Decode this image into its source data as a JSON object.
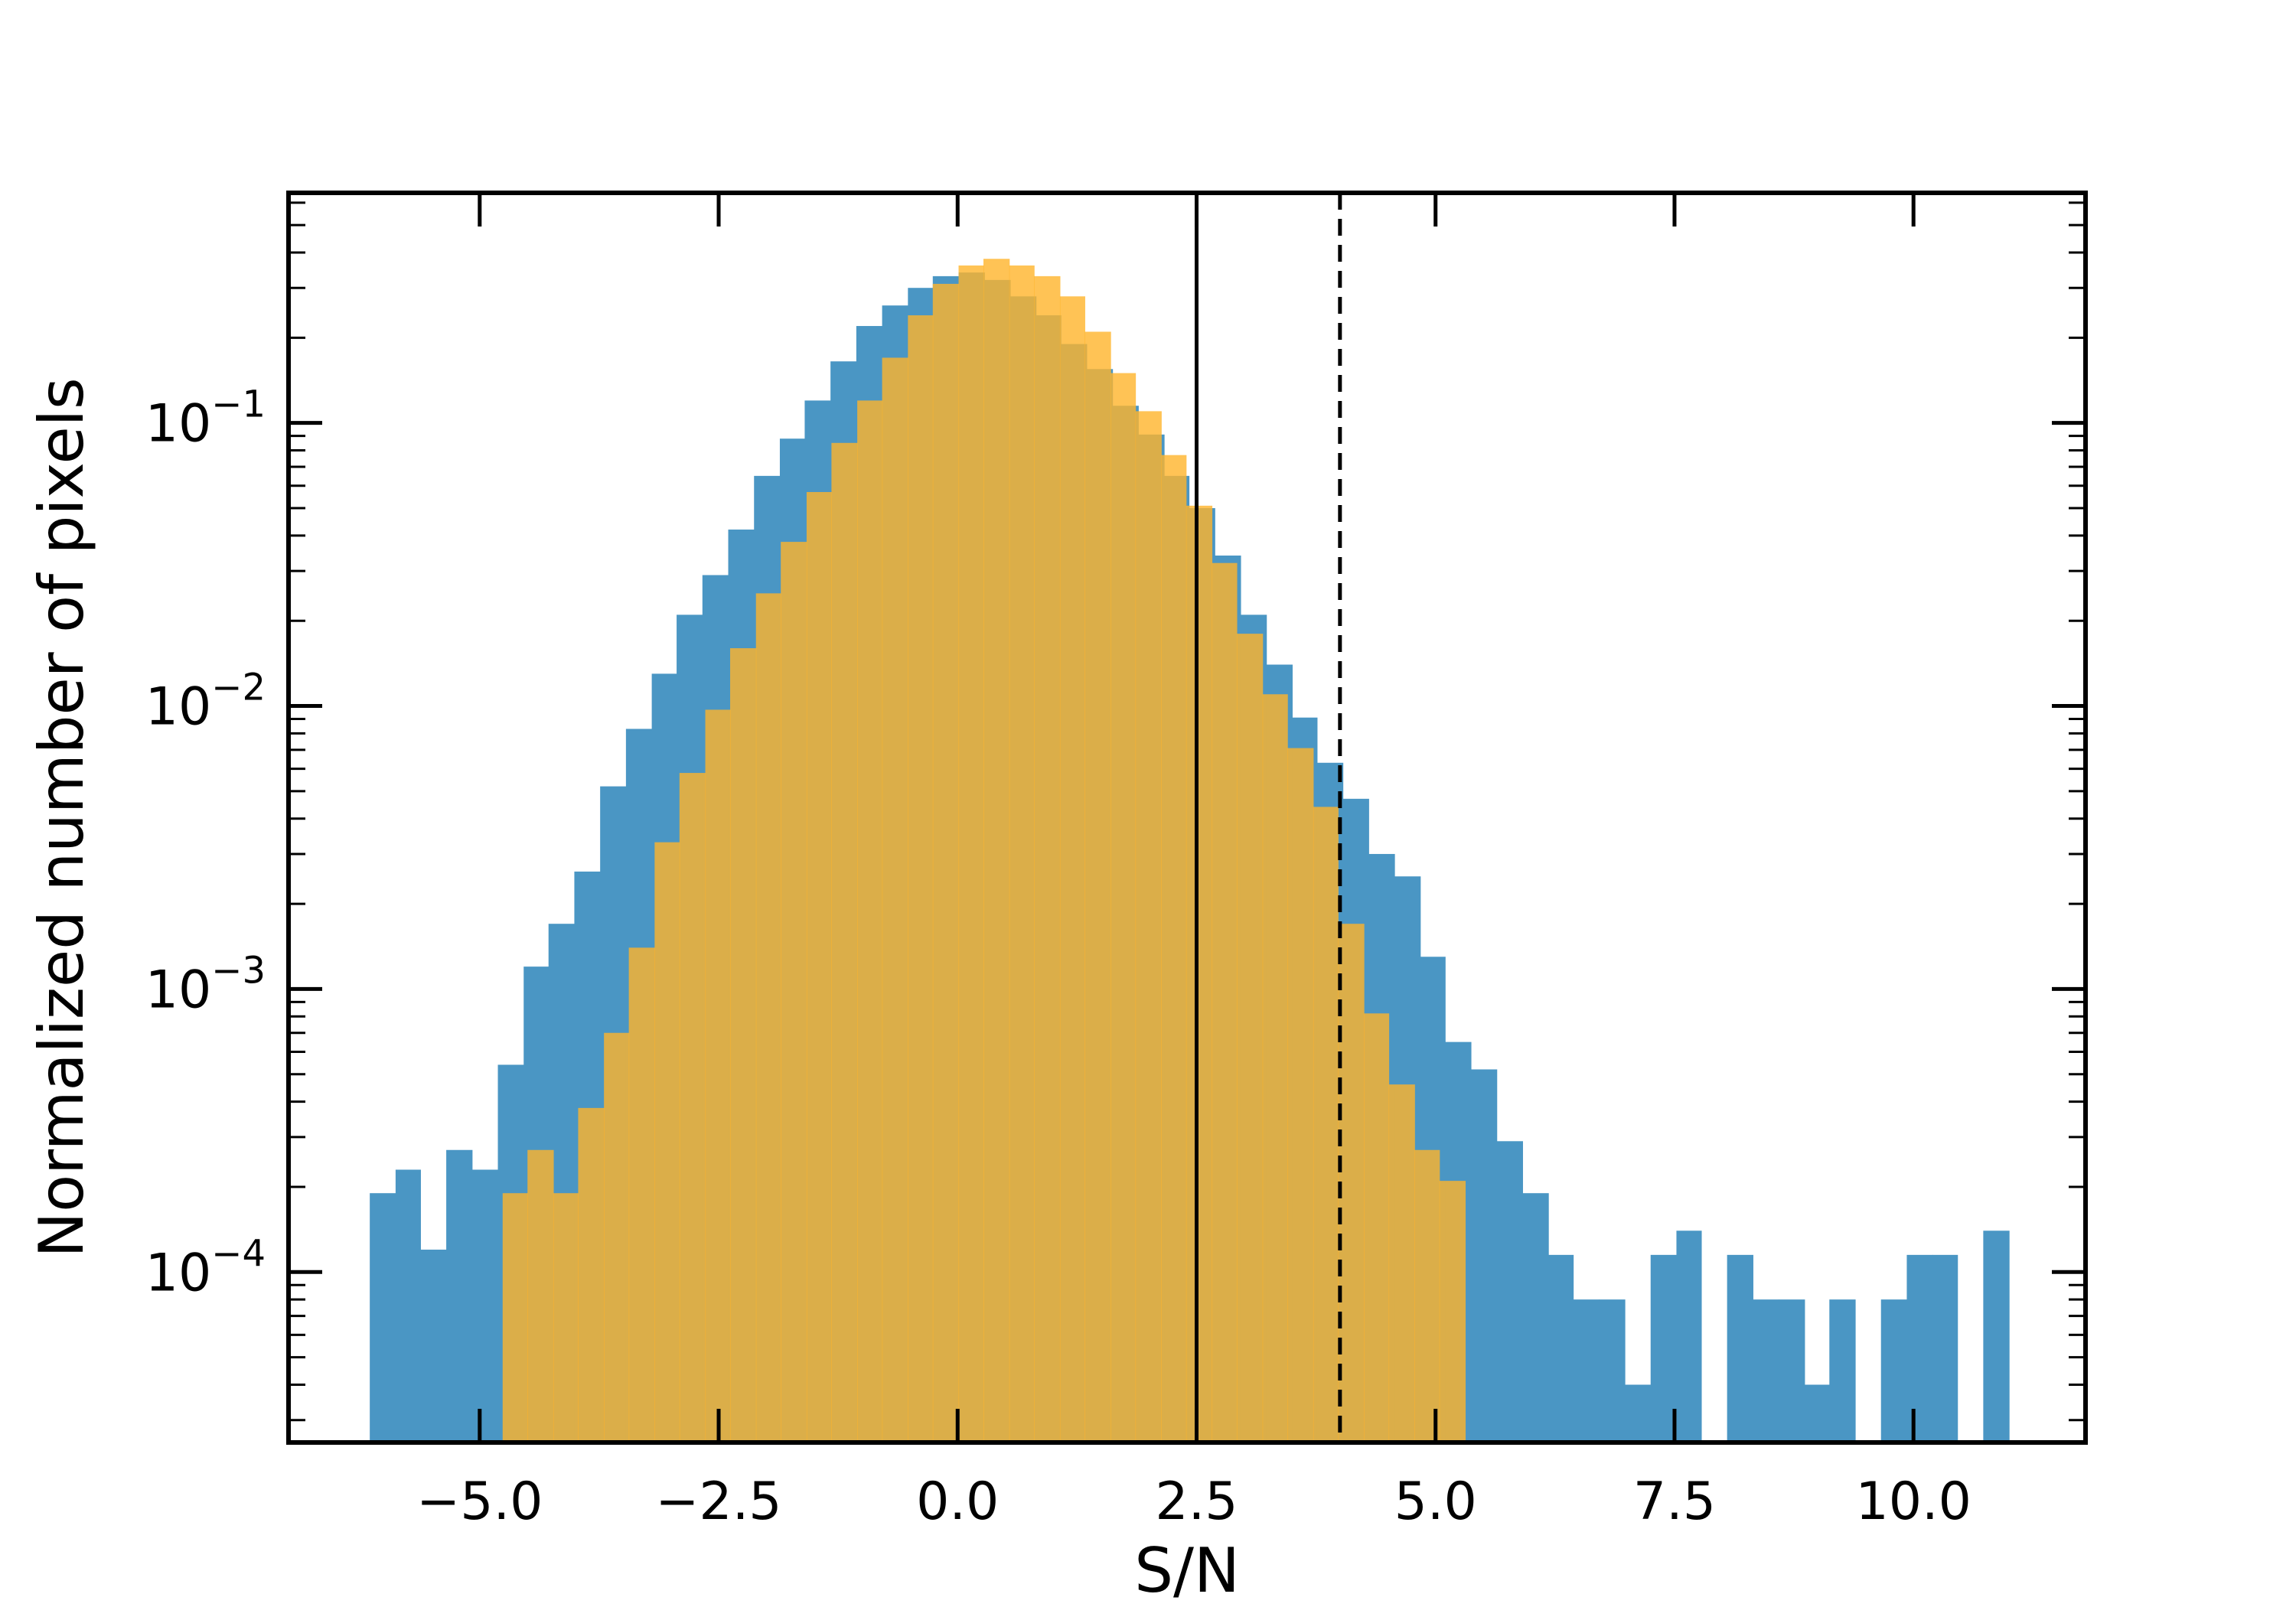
{
  "chart_data": {
    "type": "histogram",
    "xlabel": "S/N",
    "ylabel": "Normalized number of pixels",
    "xlim": [
      -7.0,
      11.8
    ],
    "ylim": [
      2.5e-05,
      0.65
    ],
    "yscale": "log",
    "xticks": [
      -5.0,
      -2.5,
      0.0,
      2.5,
      5.0,
      7.5,
      10.0
    ],
    "xtick_labels": [
      "−5.0",
      "−2.5",
      "0.0",
      "2.5",
      "5.0",
      "7.5",
      "10.0"
    ],
    "yticks": [
      0.0001,
      0.001,
      0.01,
      0.1
    ],
    "ytick_labels": [
      {
        "base": "10",
        "exp": "−4"
      },
      {
        "base": "10",
        "exp": "−3"
      },
      {
        "base": "10",
        "exp": "−2"
      },
      {
        "base": "10",
        "exp": "−1"
      }
    ],
    "vlines": [
      {
        "x": 2.5,
        "style": "solid",
        "color": "#000000"
      },
      {
        "x": 4.0,
        "style": "dashed",
        "color": "#000000"
      }
    ],
    "series": [
      {
        "color": "#4a96c4",
        "opacity": 1.0,
        "bins": [
          [
            -6.15,
            -5.88,
            0.00019
          ],
          [
            -5.88,
            -5.62,
            0.00023
          ],
          [
            -5.62,
            -5.35,
            0.00012
          ],
          [
            -5.35,
            -5.08,
            0.00027
          ],
          [
            -5.08,
            -4.81,
            0.00023
          ],
          [
            -4.81,
            -4.54,
            0.00054
          ],
          [
            -4.54,
            -4.28,
            0.0012
          ],
          [
            -4.28,
            -4.01,
            0.0017
          ],
          [
            -4.01,
            -3.74,
            0.0026
          ],
          [
            -3.74,
            -3.47,
            0.0052
          ],
          [
            -3.47,
            -3.2,
            0.0083
          ],
          [
            -3.2,
            -2.94,
            0.013
          ],
          [
            -2.94,
            -2.67,
            0.021
          ],
          [
            -2.67,
            -2.4,
            0.029
          ],
          [
            -2.4,
            -2.13,
            0.042
          ],
          [
            -2.13,
            -1.86,
            0.065
          ],
          [
            -1.86,
            -1.6,
            0.088
          ],
          [
            -1.6,
            -1.33,
            0.12
          ],
          [
            -1.33,
            -1.06,
            0.165
          ],
          [
            -1.06,
            -0.79,
            0.22
          ],
          [
            -0.79,
            -0.52,
            0.26
          ],
          [
            -0.52,
            -0.26,
            0.3
          ],
          [
            -0.26,
            0.01,
            0.33
          ],
          [
            0.01,
            0.28,
            0.34
          ],
          [
            0.28,
            0.55,
            0.32
          ],
          [
            0.55,
            0.82,
            0.28
          ],
          [
            0.82,
            1.08,
            0.24
          ],
          [
            1.08,
            1.35,
            0.19
          ],
          [
            1.35,
            1.62,
            0.155
          ],
          [
            1.62,
            1.89,
            0.115
          ],
          [
            1.89,
            2.16,
            0.091
          ],
          [
            2.16,
            2.42,
            0.065
          ],
          [
            2.42,
            2.69,
            0.05
          ],
          [
            2.69,
            2.96,
            0.034
          ],
          [
            2.96,
            3.23,
            0.021
          ],
          [
            3.23,
            3.5,
            0.014
          ],
          [
            3.5,
            3.76,
            0.0091
          ],
          [
            3.76,
            4.03,
            0.0063
          ],
          [
            4.03,
            4.3,
            0.0047
          ],
          [
            4.3,
            4.57,
            0.003
          ],
          [
            4.57,
            4.84,
            0.0025
          ],
          [
            4.84,
            5.1,
            0.0013
          ],
          [
            5.1,
            5.37,
            0.00065
          ],
          [
            5.37,
            5.64,
            0.00052
          ],
          [
            5.64,
            5.91,
            0.00029
          ],
          [
            5.91,
            6.18,
            0.00019
          ],
          [
            6.18,
            6.44,
            0.000115
          ],
          [
            6.44,
            6.71,
            8e-05
          ],
          [
            6.71,
            6.98,
            8e-05
          ],
          [
            6.98,
            7.25,
            4e-05
          ],
          [
            7.25,
            7.52,
            0.000115
          ],
          [
            7.52,
            7.78,
            0.00014
          ],
          [
            7.78,
            8.05,
            0.0
          ],
          [
            8.05,
            8.32,
            0.000115
          ],
          [
            8.32,
            8.59,
            8e-05
          ],
          [
            8.59,
            8.86,
            8e-05
          ],
          [
            8.86,
            9.12,
            4e-05
          ],
          [
            9.12,
            9.39,
            8e-05
          ],
          [
            9.39,
            9.66,
            0.0
          ],
          [
            9.66,
            9.93,
            8e-05
          ],
          [
            9.93,
            10.2,
            0.000115
          ],
          [
            10.2,
            10.46,
            0.000115
          ],
          [
            10.46,
            10.73,
            0.0
          ],
          [
            10.73,
            11.0,
            0.00014
          ]
        ]
      },
      {
        "color": "#ffb42a",
        "opacity": 0.8,
        "bins": [
          [
            -4.76,
            -4.5,
            0.00019
          ],
          [
            -4.5,
            -4.23,
            0.00027
          ],
          [
            -4.23,
            -3.97,
            0.00019
          ],
          [
            -3.97,
            -3.7,
            0.00038
          ],
          [
            -3.7,
            -3.44,
            0.0007
          ],
          [
            -3.44,
            -3.17,
            0.0014
          ],
          [
            -3.17,
            -2.91,
            0.0033
          ],
          [
            -2.91,
            -2.64,
            0.0058
          ],
          [
            -2.64,
            -2.38,
            0.0097
          ],
          [
            -2.38,
            -2.11,
            0.016
          ],
          [
            -2.11,
            -1.85,
            0.025
          ],
          [
            -1.85,
            -1.58,
            0.038
          ],
          [
            -1.58,
            -1.32,
            0.057
          ],
          [
            -1.32,
            -1.05,
            0.085
          ],
          [
            -1.05,
            -0.79,
            0.12
          ],
          [
            -0.79,
            -0.52,
            0.17
          ],
          [
            -0.52,
            -0.26,
            0.24
          ],
          [
            -0.26,
            0.01,
            0.31
          ],
          [
            0.01,
            0.27,
            0.36
          ],
          [
            0.27,
            0.54,
            0.38
          ],
          [
            0.54,
            0.8,
            0.36
          ],
          [
            0.8,
            1.07,
            0.33
          ],
          [
            1.07,
            1.33,
            0.28
          ],
          [
            1.33,
            1.6,
            0.21
          ],
          [
            1.6,
            1.86,
            0.15
          ],
          [
            1.86,
            2.13,
            0.11
          ],
          [
            2.13,
            2.39,
            0.077
          ],
          [
            2.39,
            2.66,
            0.051
          ],
          [
            2.66,
            2.92,
            0.032
          ],
          [
            2.92,
            3.19,
            0.018
          ],
          [
            3.19,
            3.45,
            0.011
          ],
          [
            3.45,
            3.72,
            0.0071
          ],
          [
            3.72,
            3.98,
            0.0044
          ],
          [
            3.98,
            4.25,
            0.0017
          ],
          [
            4.25,
            4.51,
            0.00082
          ],
          [
            4.51,
            4.78,
            0.00046
          ],
          [
            4.78,
            5.04,
            0.00027
          ],
          [
            5.04,
            5.31,
            0.00021
          ]
        ]
      }
    ]
  }
}
